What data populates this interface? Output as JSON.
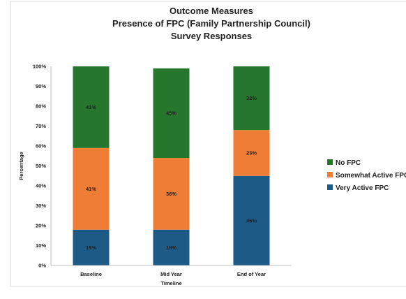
{
  "chart_data": {
    "type": "bar",
    "stacked": true,
    "title": [
      "Outcome Measures",
      "Presence of FPC (Family Partnership Council)",
      "Survey Responses"
    ],
    "xlabel": "Timeline",
    "ylabel": "Percentage",
    "categories": [
      "Baseline",
      "Mid Year",
      "End of Year"
    ],
    "ylim": [
      0,
      100
    ],
    "yticks": [
      0,
      10,
      20,
      30,
      40,
      50,
      60,
      70,
      80,
      90,
      100
    ],
    "ytick_format": "%",
    "grid": false,
    "legend_position": "right",
    "series": [
      {
        "name": "Very Active FPC",
        "color": "#1d5a85",
        "values": [
          18,
          18,
          45
        ],
        "labels": [
          "18%",
          "18%",
          "45%"
        ]
      },
      {
        "name": "Somewhat Active FPC",
        "color": "#f07d36",
        "values": [
          41,
          36,
          23
        ],
        "labels": [
          "41%",
          "36%",
          "23%"
        ]
      },
      {
        "name": "No FPC",
        "color": "#26762d",
        "values": [
          41,
          45,
          32
        ],
        "labels": [
          "41%",
          "45%",
          "32%"
        ]
      }
    ],
    "legend_order": [
      "No FPC",
      "Somewhat Active FPC",
      "Very Active FPC"
    ]
  }
}
